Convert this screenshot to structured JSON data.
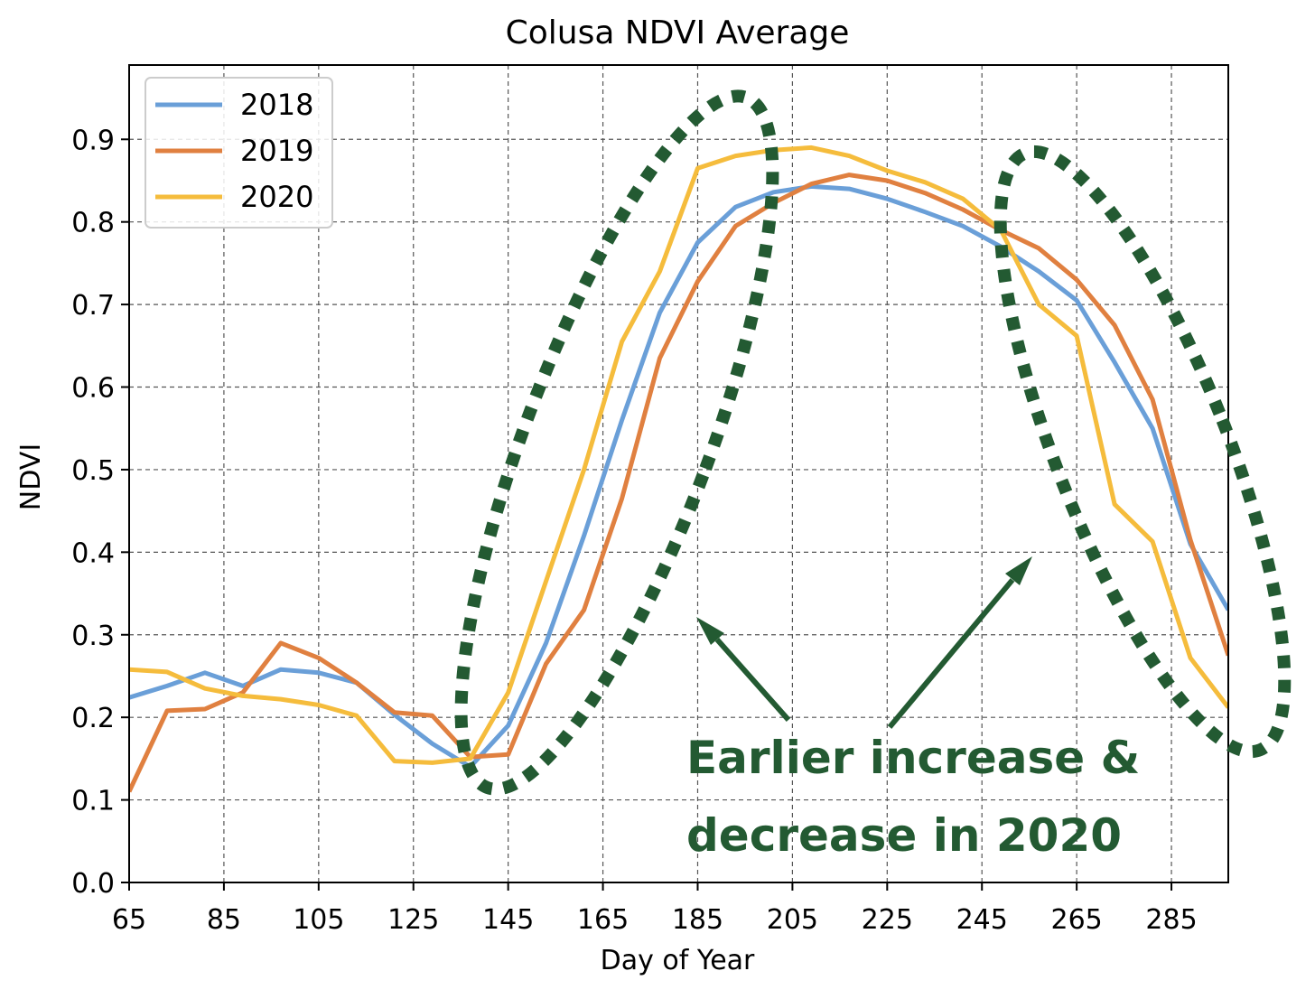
{
  "chart_data": {
    "type": "line",
    "title": "Colusa NDVI Average",
    "xlabel": "Day of Year",
    "ylabel": "NDVI",
    "xlim": [
      65,
      297
    ],
    "ylim": [
      0,
      0.99
    ],
    "xticks": [
      65,
      85,
      105,
      125,
      145,
      165,
      185,
      205,
      225,
      245,
      265,
      285
    ],
    "yticks": [
      0.0,
      0.1,
      0.2,
      0.3,
      0.4,
      0.5,
      0.6,
      0.7,
      0.8,
      0.9
    ],
    "ytick_labels": [
      "0.0",
      "0.1",
      "0.2",
      "0.3",
      "0.4",
      "0.5",
      "0.6",
      "0.7",
      "0.8",
      "0.9"
    ],
    "grid": true,
    "legend_position": "upper-left",
    "x": [
      65,
      73,
      81,
      89,
      97,
      105,
      113,
      121,
      129,
      137,
      145,
      153,
      161,
      169,
      177,
      185,
      193,
      201,
      209,
      217,
      225,
      233,
      241,
      249,
      257,
      265,
      273,
      281,
      289,
      297
    ],
    "series": [
      {
        "name": "2018",
        "color": "#6a9fd8",
        "values": [
          0.224,
          0.238,
          0.254,
          0.238,
          0.258,
          0.254,
          0.242,
          0.203,
          0.168,
          0.14,
          0.19,
          0.29,
          0.42,
          0.56,
          0.69,
          0.775,
          0.818,
          0.836,
          0.843,
          0.84,
          0.828,
          0.812,
          0.795,
          0.77,
          0.74,
          0.705,
          0.63,
          0.55,
          0.41,
          0.33
        ]
      },
      {
        "name": "2019",
        "color": "#e08040",
        "values": [
          0.11,
          0.208,
          0.21,
          0.23,
          0.29,
          0.272,
          0.242,
          0.206,
          0.202,
          0.152,
          0.155,
          0.265,
          0.33,
          0.465,
          0.635,
          0.728,
          0.795,
          0.823,
          0.846,
          0.857,
          0.85,
          0.835,
          0.815,
          0.79,
          0.768,
          0.73,
          0.675,
          0.585,
          0.415,
          0.275
        ]
      },
      {
        "name": "2020",
        "color": "#f5bc3c",
        "values": [
          0.258,
          0.255,
          0.235,
          0.226,
          0.222,
          0.215,
          0.202,
          0.147,
          0.145,
          0.15,
          0.23,
          0.365,
          0.5,
          0.655,
          0.74,
          0.865,
          0.88,
          0.887,
          0.89,
          0.88,
          0.862,
          0.848,
          0.828,
          0.79,
          0.7,
          0.662,
          0.458,
          0.413,
          0.272,
          0.212
        ]
      }
    ],
    "annotation": {
      "text_line1": "Earlier increase &",
      "text_line2": "decrease in 2020",
      "color": "#235a32"
    }
  }
}
